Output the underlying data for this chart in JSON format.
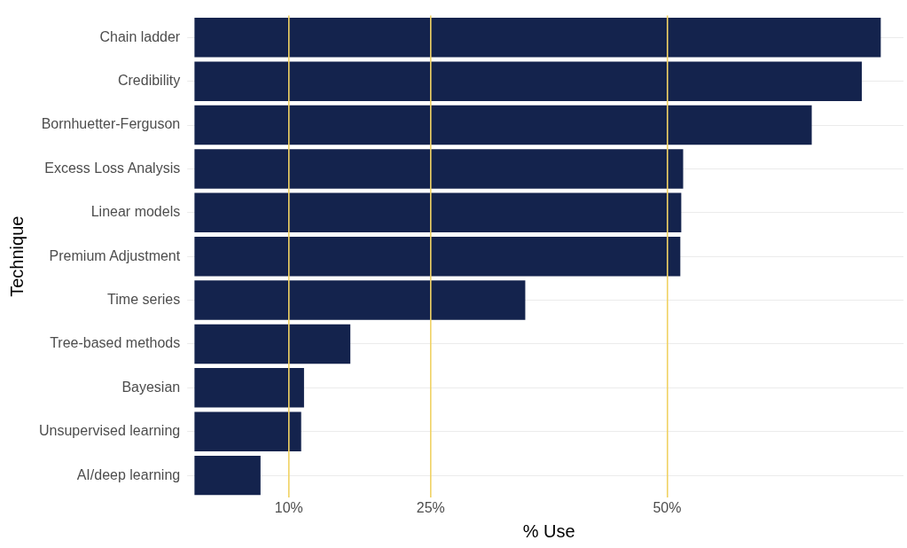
{
  "chart_data": {
    "type": "bar",
    "orientation": "horizontal",
    "xlabel": "% Use",
    "ylabel": "Technique",
    "categories": [
      "Chain ladder",
      "Credibility",
      "Bornhuetter-Ferguson",
      "Excess Loss Analysis",
      "Linear models",
      "Premium Adjustment",
      "Time series",
      "Tree-based methods",
      "Bayesian",
      "Unsupervised learning",
      "AI/deep learning"
    ],
    "values": [
      72.6,
      70.6,
      65.3,
      51.7,
      51.5,
      51.4,
      35.0,
      16.5,
      11.6,
      11.3,
      7.0
    ],
    "color": "#14234d",
    "xlim": [
      0,
      75
    ],
    "xticks": [
      {
        "value": 10,
        "label": "10%"
      },
      {
        "value": 25,
        "label": "25%"
      },
      {
        "value": 50,
        "label": "50%"
      }
    ],
    "grid": true,
    "legend": false
  }
}
